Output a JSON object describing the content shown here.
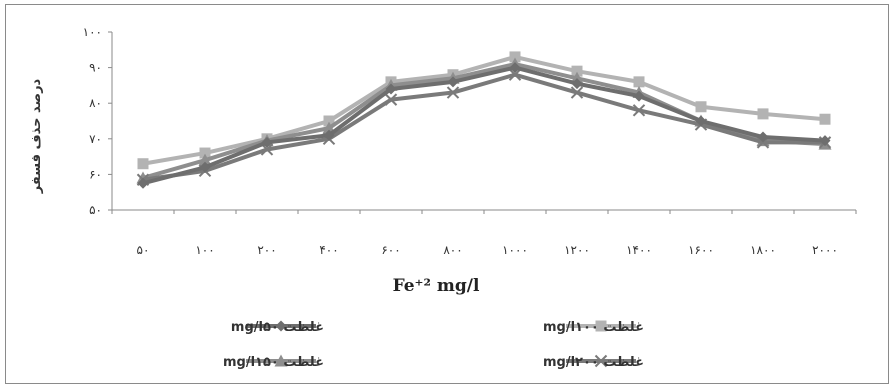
{
  "chart_data": {
    "type": "line",
    "categories": [
      "۵۰",
      "۱۰۰",
      "۲۰۰",
      "۴۰۰",
      "۶۰۰",
      "۸۰۰",
      "۱۰۰۰",
      "۱۲۰۰",
      "۱۴۰۰",
      "۱۶۰۰",
      "۱۸۰۰",
      "۲۰۰۰"
    ],
    "y_ticks": [
      "۵۰",
      "۶۰",
      "۷۰",
      "۸۰",
      "۹۰",
      "۱۰۰"
    ],
    "ylim": [
      50,
      100
    ],
    "xlabel": "Fe⁺² mg/l",
    "ylabel": "درصد حذف فسفر",
    "grid": false,
    "legend_position": "bottom",
    "series": [
      {
        "name": "غلظت mg/l۵۰",
        "marker": "diamond",
        "color": "#6e6e6e",
        "values": [
          57.5,
          62,
          69,
          71,
          84,
          86,
          90,
          85.5,
          82,
          75,
          70.5,
          69.5
        ]
      },
      {
        "name": "غلظت mg/l۱۰۰",
        "marker": "square",
        "color": "#b3b3b3",
        "values": [
          63,
          66,
          70,
          75,
          86,
          88,
          93,
          89,
          86,
          79,
          77,
          75.5
        ]
      },
      {
        "name": "غلظت mg/l۱۵۰",
        "marker": "triangle",
        "color": "#8e8e8e",
        "values": [
          59,
          64,
          69.5,
          73,
          85,
          87,
          91,
          87,
          83,
          75,
          69.5,
          68.5
        ]
      },
      {
        "name": "غلظت mg/l۲۰۰",
        "marker": "x",
        "color": "#7a7a7a",
        "values": [
          58.5,
          61,
          67,
          70,
          81,
          83,
          88,
          83,
          78,
          74,
          69,
          69
        ]
      }
    ]
  }
}
